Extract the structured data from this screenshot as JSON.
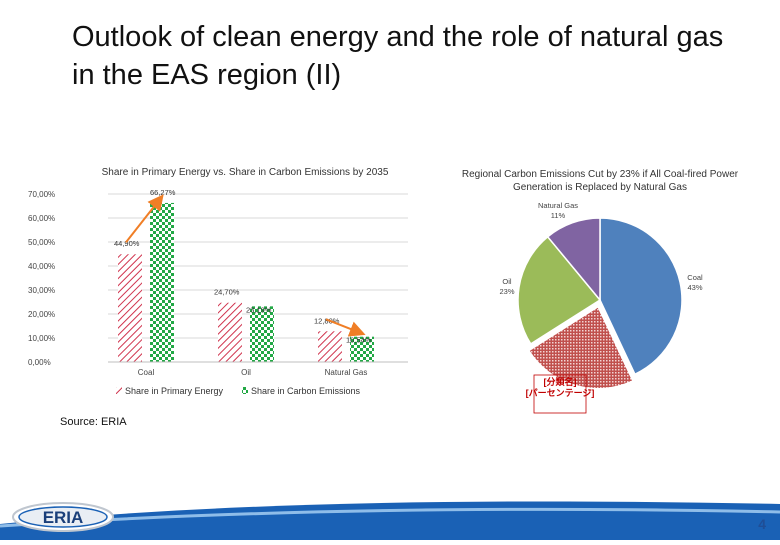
{
  "slide": {
    "title": "Outlook of clean energy and the role of natural gas in the EAS region (II)",
    "source": "Source: ERIA",
    "page_number": "4",
    "logo_text": "ERIA"
  },
  "chart_data": [
    {
      "type": "bar",
      "title": "Share in Primary Energy vs. Share in Carbon Emissions by 2035",
      "categories": [
        "Coal",
        "Oil",
        "Natural Gas"
      ],
      "series": [
        {
          "name": "Share in Primary Energy",
          "values": [
            44.9,
            24.7,
            12.8
          ],
          "labels": [
            "44,90%",
            "24,70%",
            "12,80%"
          ],
          "pattern": "diagonal",
          "color": "#d0334d"
        },
        {
          "name": "Share in Carbon Emissions",
          "values": [
            66.27,
            23.19,
            10.54
          ],
          "labels": [
            "66,27%",
            "23,19%",
            "10,54%"
          ],
          "pattern": "checker",
          "color": "#22a845"
        }
      ],
      "ylim": [
        0,
        70
      ],
      "ytick_labels": [
        "0,00%",
        "10,00%",
        "20,00%",
        "30,00%",
        "40,00%",
        "50,00%",
        "60,00%",
        "70,00%"
      ],
      "legend": "bottom",
      "arrow_color": "#f07e26"
    },
    {
      "type": "pie",
      "title": "Regional Carbon Emissions Cut by 23% if All Coal-fired Power Generation is Replaced by Natural Gas",
      "slices": [
        {
          "name": "Coal",
          "value": 43,
          "label": "Coal\n43%",
          "color": "#4f81bd"
        },
        {
          "name": "",
          "value": 23,
          "label": "[分類名]\n[パーセンテージ]",
          "color": "#c0504d",
          "pattern": "dots"
        },
        {
          "name": "Oil",
          "value": 23,
          "label": "Oil\n23%",
          "color": "#9bbb59"
        },
        {
          "name": "Natural Gas",
          "value": 11,
          "label": "Natural Gas\n11%",
          "color": "#8064a2"
        }
      ]
    }
  ]
}
